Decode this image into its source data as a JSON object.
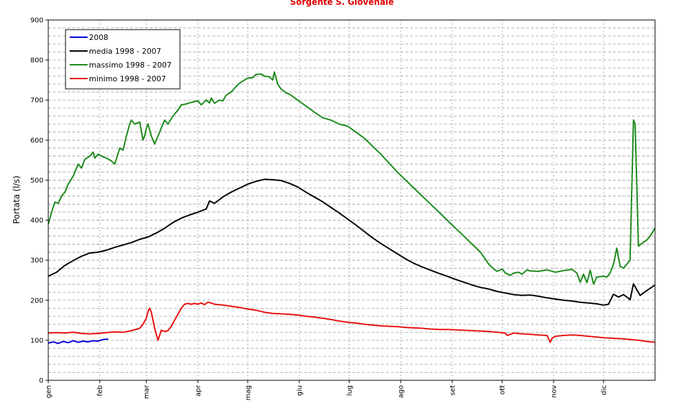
{
  "chart_data": {
    "type": "line",
    "title": "Sorgente S. Giovenale",
    "ylabel": "Portata (l/s)",
    "xlabel": "",
    "ylim": [
      0,
      900
    ],
    "yticks": [
      0,
      100,
      200,
      300,
      400,
      500,
      600,
      700,
      800,
      900
    ],
    "xlim": [
      0,
      365
    ],
    "month_labels": [
      "gen",
      "feb",
      "mar",
      "apr",
      "mag",
      "giu",
      "lug",
      "ago",
      "set",
      "ott",
      "nov",
      "dic"
    ],
    "month_starts": [
      0,
      31,
      59,
      90,
      120,
      151,
      181,
      212,
      243,
      273,
      304,
      334
    ],
    "grid": true,
    "legend_position": "top-left",
    "series": [
      {
        "name": "2008",
        "color": "#0000dd",
        "x": [
          0,
          3,
          6,
          9,
          12,
          15,
          18,
          21,
          24,
          27,
          30,
          33,
          36
        ],
        "y": [
          93,
          96,
          92,
          97,
          94,
          99,
          95,
          98,
          96,
          99,
          98,
          102,
          103
        ]
      },
      {
        "name": "media 1998 - 2007",
        "color": "#000000",
        "x": [
          0,
          5,
          10,
          15,
          20,
          25,
          30,
          35,
          40,
          45,
          50,
          55,
          60,
          65,
          70,
          75,
          80,
          85,
          90,
          95,
          97,
          100,
          105,
          110,
          115,
          120,
          125,
          130,
          135,
          140,
          145,
          150,
          155,
          160,
          165,
          170,
          175,
          180,
          185,
          190,
          195,
          200,
          205,
          210,
          215,
          220,
          225,
          230,
          235,
          240,
          245,
          250,
          255,
          260,
          265,
          270,
          275,
          280,
          285,
          290,
          295,
          300,
          305,
          310,
          315,
          320,
          325,
          330,
          334,
          337,
          340,
          343,
          346,
          349,
          350,
          352,
          356,
          360,
          365
        ],
        "y": [
          260,
          270,
          287,
          299,
          310,
          318,
          320,
          325,
          332,
          338,
          344,
          352,
          358,
          368,
          380,
          394,
          405,
          413,
          420,
          428,
          448,
          442,
          458,
          470,
          480,
          490,
          497,
          502,
          501,
          499,
          492,
          483,
          470,
          458,
          446,
          432,
          418,
          403,
          388,
          372,
          356,
          342,
          329,
          316,
          303,
          292,
          283,
          275,
          267,
          260,
          252,
          245,
          238,
          232,
          228,
          222,
          218,
          214,
          212,
          213,
          210,
          206,
          203,
          200,
          198,
          195,
          193,
          191,
          188,
          190,
          215,
          208,
          214,
          205,
          201,
          241,
          212,
          224,
          238
        ]
      },
      {
        "name": "massimo 1998 - 2007",
        "color": "#1a8a1a",
        "x": [
          0,
          2,
          4,
          6,
          8,
          10,
          12,
          15,
          18,
          20,
          22,
          25,
          27,
          28,
          30,
          32,
          35,
          38,
          40,
          43,
          45,
          47,
          49,
          50,
          52,
          55,
          57,
          58,
          59,
          60,
          62,
          64,
          66,
          68,
          70,
          72,
          75,
          78,
          80,
          83,
          85,
          88,
          90,
          92,
          95,
          97,
          98,
          100,
          103,
          105,
          107,
          110,
          113,
          115,
          118,
          120,
          123,
          125,
          128,
          130,
          133,
          135,
          136,
          138,
          140,
          143,
          145,
          150,
          155,
          160,
          165,
          170,
          175,
          180,
          190,
          200,
          210,
          220,
          230,
          240,
          250,
          260,
          265,
          268,
          270,
          273,
          275,
          278,
          280,
          283,
          285,
          288,
          290,
          295,
          300,
          305,
          310,
          315,
          318,
          320,
          322,
          324,
          326,
          328,
          330,
          334,
          336,
          338,
          340,
          342,
          344,
          346,
          348,
          350,
          352,
          353,
          355,
          358,
          360,
          362,
          365
        ],
        "y": [
          390,
          420,
          445,
          442,
          460,
          470,
          490,
          510,
          540,
          530,
          552,
          560,
          570,
          555,
          565,
          560,
          555,
          548,
          540,
          580,
          575,
          610,
          640,
          650,
          640,
          645,
          600,
          610,
          630,
          640,
          610,
          590,
          610,
          630,
          650,
          640,
          660,
          675,
          688,
          690,
          693,
          696,
          698,
          688,
          700,
          693,
          705,
          692,
          700,
          698,
          712,
          720,
          734,
          742,
          750,
          755,
          756,
          764,
          765,
          760,
          758,
          750,
          770,
          740,
          728,
          718,
          715,
          700,
          685,
          670,
          656,
          650,
          640,
          635,
          605,
          565,
          520,
          480,
          440,
          400,
          360,
          320,
          290,
          278,
          272,
          278,
          268,
          262,
          268,
          270,
          265,
          276,
          273,
          272,
          276,
          270,
          274,
          277,
          268,
          245,
          265,
          244,
          275,
          240,
          258,
          260,
          258,
          268,
          290,
          330,
          285,
          280,
          290,
          300,
          650,
          640,
          335,
          345,
          350,
          360,
          380
        ]
      },
      {
        "name": "minimo 1998 - 2007",
        "color": "#e81010",
        "x": [
          0,
          5,
          10,
          15,
          20,
          25,
          30,
          35,
          40,
          45,
          50,
          55,
          57,
          59,
          60,
          61,
          62,
          63,
          64,
          66,
          68,
          70,
          72,
          74,
          76,
          78,
          80,
          82,
          84,
          86,
          88,
          90,
          92,
          94,
          96,
          98,
          100,
          105,
          110,
          115,
          120,
          125,
          130,
          135,
          140,
          145,
          150,
          155,
          160,
          165,
          170,
          175,
          180,
          185,
          190,
          195,
          200,
          205,
          210,
          215,
          220,
          225,
          230,
          235,
          240,
          245,
          250,
          255,
          260,
          265,
          270,
          275,
          276,
          280,
          285,
          290,
          295,
          300,
          302,
          303,
          305,
          310,
          315,
          320,
          325,
          330,
          335,
          340,
          345,
          350,
          355,
          360,
          365
        ],
        "y": [
          118,
          119,
          118,
          120,
          117,
          116,
          117,
          119,
          121,
          120,
          124,
          130,
          140,
          155,
          172,
          180,
          170,
          150,
          130,
          100,
          125,
          122,
          124,
          135,
          150,
          165,
          180,
          190,
          192,
          190,
          192,
          190,
          193,
          189,
          195,
          193,
          190,
          188,
          185,
          182,
          178,
          175,
          170,
          167,
          166,
          165,
          163,
          160,
          158,
          155,
          152,
          148,
          145,
          143,
          140,
          138,
          136,
          135,
          134,
          132,
          131,
          130,
          128,
          127,
          127,
          126,
          125,
          124,
          123,
          122,
          120,
          118,
          112,
          118,
          116,
          115,
          113,
          112,
          95,
          105,
          110,
          112,
          113,
          112,
          110,
          108,
          106,
          105,
          104,
          102,
          100,
          97,
          95
        ]
      }
    ]
  }
}
